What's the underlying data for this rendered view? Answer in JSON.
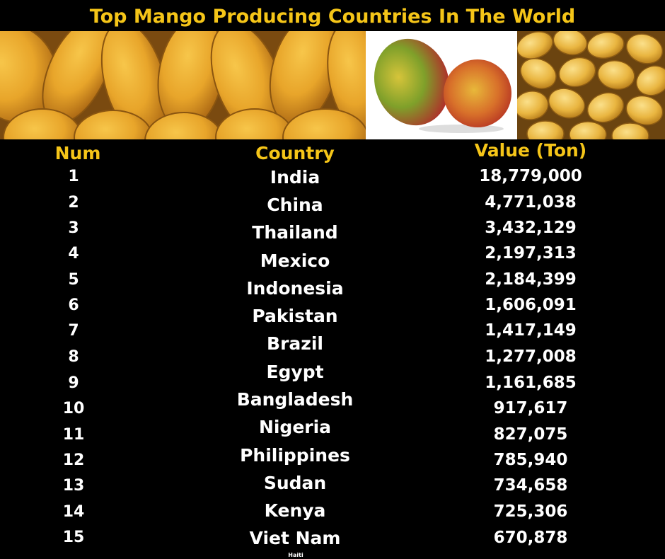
{
  "title": "Top Mango Producing Countries In The World",
  "colors": {
    "background": "#000000",
    "heading": "#f5c518",
    "text": "#ffffff"
  },
  "images": [
    {
      "icon": "mango-pile-photo"
    },
    {
      "icon": "two-mangoes-photo"
    },
    {
      "icon": "mango-heap-photo"
    }
  ],
  "table": {
    "headers": {
      "num": "Num",
      "country": "Country",
      "value": "Value (Ton)"
    },
    "rows": [
      {
        "num": "1",
        "country": "India",
        "value": "18,779,000"
      },
      {
        "num": "2",
        "country": "China",
        "value": "4,771,038"
      },
      {
        "num": "3",
        "country": "Thailand",
        "value": "3,432,129"
      },
      {
        "num": "4",
        "country": "Mexico",
        "value": "2,197,313"
      },
      {
        "num": "5",
        "country": "Indonesia",
        "value": "2,184,399"
      },
      {
        "num": "6",
        "country": "Pakistan",
        "value": "1,606,091"
      },
      {
        "num": "7",
        "country": "Brazil",
        "value": "1,417,149"
      },
      {
        "num": "8",
        "country": "Egypt",
        "value": "1,277,008"
      },
      {
        "num": "9",
        "country": "Bangladesh",
        "value": "1,161,685"
      },
      {
        "num": "10",
        "country": "Nigeria",
        "value": "917,617"
      },
      {
        "num": "11",
        "country": "Philippines",
        "value": "827,075"
      },
      {
        "num": "12",
        "country": "Sudan",
        "value": "785,940"
      },
      {
        "num": "13",
        "country": "Kenya",
        "value": "734,658"
      },
      {
        "num": "14",
        "country": "Viet Nam",
        "value": "725,306"
      },
      {
        "num": "15",
        "country": "Haiti",
        "value": "670,878"
      }
    ]
  }
}
